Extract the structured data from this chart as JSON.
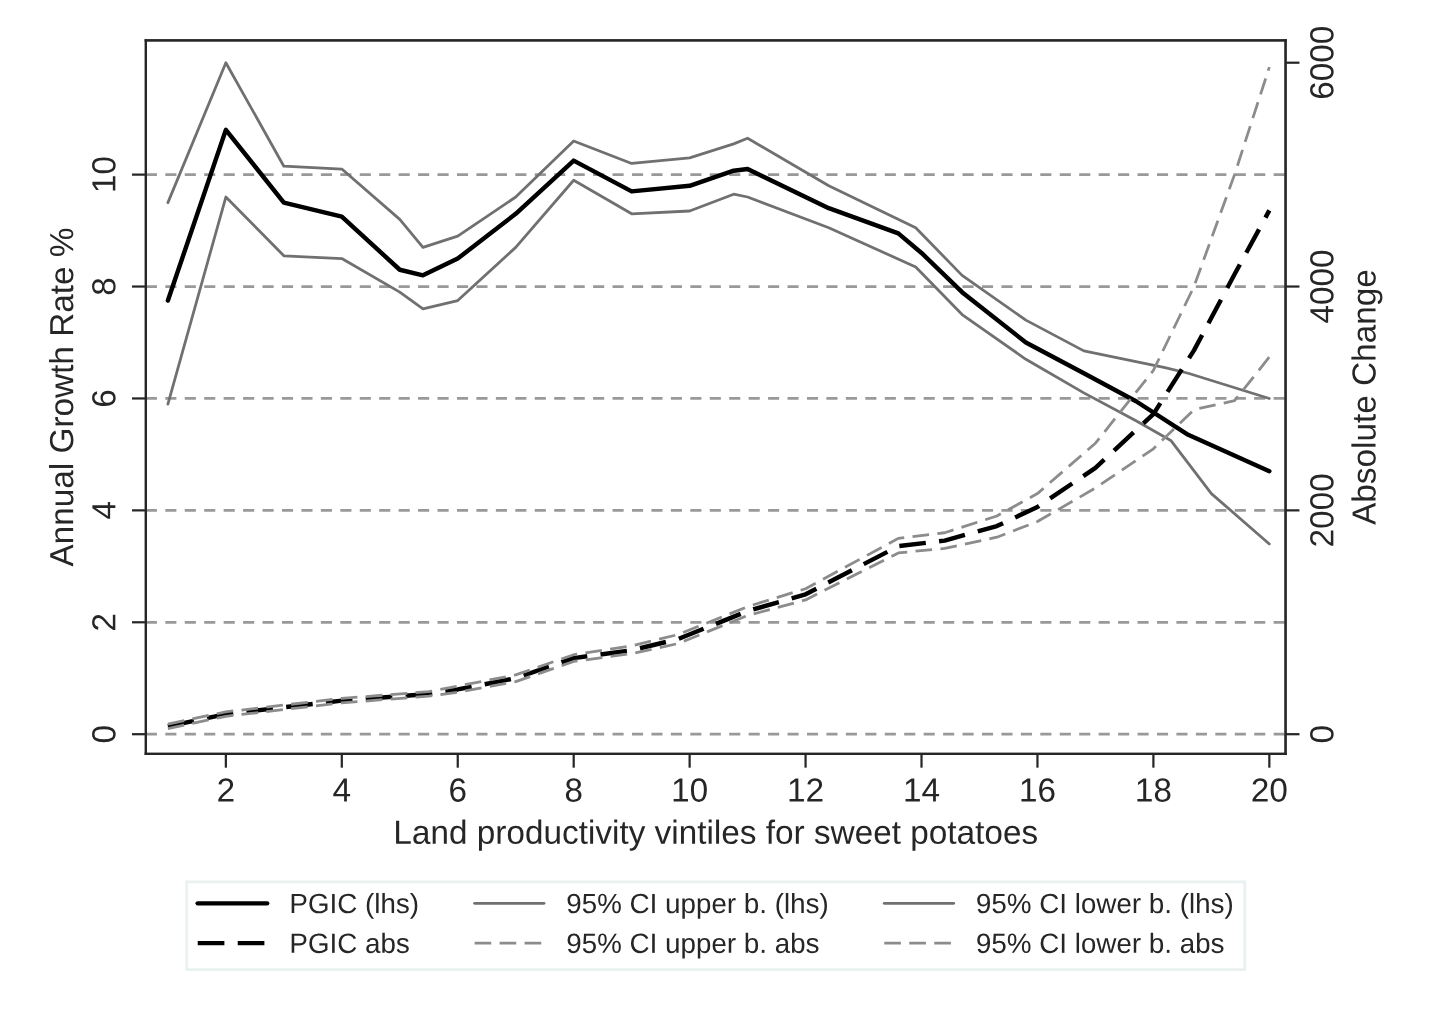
{
  "chart_data": {
    "type": "line",
    "xlabel": "Land productivity vintiles for sweet potatoes",
    "ylabel": "Annual Growth Rate %",
    "y2label": "Absolute Change",
    "xlim": [
      0.62,
      20.28
    ],
    "xticks": [
      2,
      4,
      6,
      8,
      10,
      12,
      14,
      16,
      18,
      20
    ],
    "ylim": [
      -0.35,
      12.4
    ],
    "yticks": [
      0,
      2,
      4,
      6,
      8,
      10
    ],
    "y2lim": [
      -175,
      6200
    ],
    "y2ticks": [
      0,
      2000,
      4000,
      6000
    ],
    "grid": "y",
    "legend": "bottom",
    "series": [
      {
        "name": "PGIC (lhs)",
        "color": "#000000",
        "line_style": "solid",
        "x": [
          1,
          2,
          3,
          4,
          5,
          5.4,
          6,
          7,
          8,
          9,
          10,
          10.76,
          11,
          12.4,
          13.6,
          14.0,
          14.7,
          15.8,
          16.8,
          17.7,
          18.6,
          20
        ],
        "values": [
          7.75,
          10.8,
          9.5,
          9.25,
          8.3,
          8.2,
          8.5,
          9.3,
          10.25,
          9.7,
          9.8,
          10.07,
          10.1,
          9.4,
          8.95,
          8.6,
          7.9,
          7.0,
          6.45,
          5.95,
          5.35,
          4.7
        ]
      },
      {
        "name": "95% CI upper b. (lhs)",
        "color": "#707070",
        "line_style": "solid",
        "x": [
          1,
          2,
          3,
          4,
          5,
          5.4,
          6,
          7,
          8,
          9,
          10,
          10.76,
          11,
          12.4,
          13.9,
          14.7,
          15.8,
          16.8,
          18.2,
          18.6,
          20
        ],
        "values": [
          9.5,
          12.0,
          10.15,
          10.1,
          9.2,
          8.7,
          8.9,
          9.6,
          10.6,
          10.2,
          10.3,
          10.55,
          10.65,
          9.8,
          9.05,
          8.2,
          7.4,
          6.85,
          6.55,
          6.45,
          6.0
        ]
      },
      {
        "name": "95% CI lower b. (lhs)",
        "color": "#707070",
        "line_style": "solid",
        "x": [
          1,
          2,
          3,
          4,
          5,
          5.4,
          6,
          7,
          8,
          9,
          10,
          10.76,
          11,
          12.4,
          13.9,
          14.7,
          15.8,
          16.8,
          17.7,
          18.3,
          19,
          20
        ],
        "values": [
          5.9,
          9.6,
          8.55,
          8.5,
          7.9,
          7.6,
          7.75,
          8.7,
          9.9,
          9.3,
          9.35,
          9.65,
          9.6,
          9.05,
          8.35,
          7.5,
          6.7,
          6.1,
          5.6,
          5.25,
          4.3,
          3.4
        ]
      },
      {
        "name": "PGIC abs",
        "color": "#000000",
        "line_style": "dashed",
        "axis": "y2",
        "x": [
          1,
          2,
          4,
          5.5,
          6,
          7,
          8,
          9,
          9.8,
          11,
          12,
          13.6,
          14.4,
          15.3,
          16,
          17,
          18,
          18.7,
          19.4,
          20
        ],
        "values": [
          70,
          180,
          300,
          360,
          400,
          500,
          680,
          750,
          850,
          1100,
          1250,
          1680,
          1730,
          1860,
          2030,
          2380,
          2860,
          3430,
          4110,
          4680
        ]
      },
      {
        "name": "95% CI upper b. abs",
        "color": "#8c8c8c",
        "line_style": "dashed",
        "axis": "y2",
        "x": [
          1,
          2,
          4,
          5.5,
          6,
          7,
          8,
          9,
          9.8,
          11,
          12,
          13.6,
          14.4,
          15.3,
          16,
          17,
          18,
          18.7,
          19.4,
          20
        ],
        "values": [
          90,
          200,
          320,
          380,
          430,
          530,
          710,
          790,
          890,
          1140,
          1300,
          1750,
          1800,
          1950,
          2150,
          2600,
          3250,
          4000,
          5000,
          5960
        ]
      },
      {
        "name": "95% CI lower b. abs",
        "color": "#8c8c8c",
        "line_style": "dashed",
        "axis": "y2",
        "x": [
          1,
          2,
          4,
          5.5,
          6,
          7,
          8,
          9,
          9.8,
          11,
          12,
          13.6,
          14.4,
          15.3,
          16,
          17,
          18,
          18.7,
          19.4,
          20
        ],
        "values": [
          50,
          160,
          280,
          340,
          375,
          470,
          650,
          720,
          810,
          1060,
          1200,
          1620,
          1660,
          1760,
          1900,
          2200,
          2550,
          2900,
          2980,
          3370
        ]
      }
    ]
  }
}
